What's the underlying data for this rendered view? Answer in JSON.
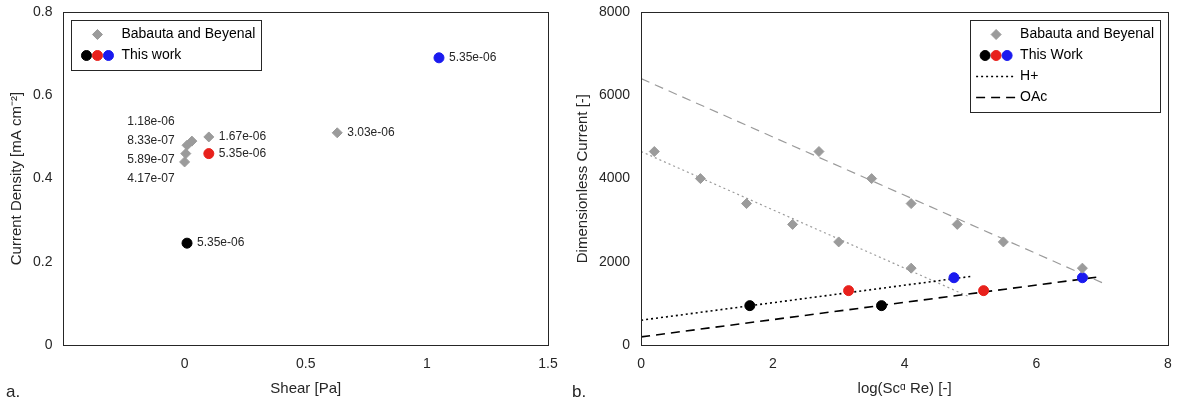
{
  "chart_data": [
    {
      "type": "scatter",
      "panel_label": "a.",
      "x_label": "Shear [Pa]",
      "y_label": "Current Density [mA cm⁻²]",
      "xlim": [
        -0.5,
        1.5
      ],
      "xticks": [
        0,
        0.5,
        1,
        1.5
      ],
      "ylim": [
        0,
        0.8
      ],
      "yticks": [
        0,
        0.2,
        0.4,
        0.6,
        0.8
      ],
      "grid": false,
      "legend": "upper left",
      "series": [
        {
          "name": "Babauta and Beyenal",
          "color": "#9b9b9b",
          "marker": "diamond",
          "x": [
            0,
            0.005,
            0.01,
            0.03,
            0.1,
            0.63
          ],
          "values": [
            0.44,
            0.46,
            0.48,
            0.49,
            0.5,
            0.51
          ],
          "annotations": [
            "4.17e-07",
            "5.89e-07",
            "8.33e-07",
            "1.18e-06",
            "1.67e-06",
            "3.03e-06"
          ]
        },
        {
          "name": "This work",
          "colors": [
            "#000000",
            "#e8211c",
            "#1a1aef"
          ],
          "marker": "circle",
          "x": [
            0.01,
            0.1,
            1.05
          ],
          "values": [
            0.245,
            0.46,
            0.69
          ],
          "annotations": [
            "5.35e-06",
            "5.35e-06",
            "5.35e-06"
          ]
        }
      ]
    },
    {
      "type": "scatter",
      "panel_label": "b.",
      "x_label": "log(Scᵅ Re) [-]",
      "y_label": "Dimensionless Current [-]",
      "xlim": [
        0,
        8
      ],
      "xticks": [
        0,
        2,
        4,
        6,
        8
      ],
      "ylim": [
        0,
        8000
      ],
      "yticks": [
        0,
        2000,
        4000,
        6000,
        8000
      ],
      "grid": false,
      "legend": "upper right",
      "series": [
        {
          "name": "Babauta and Beyenal",
          "color": "#9b9b9b",
          "marker": "diamond",
          "x": [
            0.2,
            0.9,
            1.6,
            2.3,
            3.0,
            4.1,
            2.7,
            3.5,
            4.1,
            4.8,
            5.5,
            6.7
          ],
          "values": [
            4650,
            4000,
            3400,
            2900,
            2480,
            1850,
            4650,
            4000,
            3400,
            2900,
            2480,
            1850
          ]
        },
        {
          "name": "This Work",
          "colors": [
            "#000000",
            "#e8211c",
            "#1a1aef",
            "#000000",
            "#e8211c",
            "#1a1aef"
          ],
          "marker": "circle",
          "x": [
            1.65,
            3.15,
            4.75,
            3.65,
            5.2,
            6.7
          ],
          "values": [
            950,
            1310,
            1620,
            950,
            1310,
            1620
          ]
        },
        {
          "name": "H+",
          "color": "#000000",
          "line_style": "dotted",
          "x": [
            0,
            5
          ],
          "values": [
            600,
            1650
          ]
        },
        {
          "name": "H+",
          "color": "#9b9b9b",
          "line_style": "dotted",
          "x": [
            0,
            5
          ],
          "values": [
            4650,
            1150
          ]
        },
        {
          "name": "OAc",
          "color": "#000000",
          "line_style": "dashed",
          "x": [
            0,
            7
          ],
          "values": [
            200,
            1650
          ]
        },
        {
          "name": "OAc",
          "color": "#9b9b9b",
          "line_style": "dashed",
          "x": [
            0,
            7
          ],
          "values": [
            6400,
            1500
          ]
        }
      ]
    }
  ]
}
